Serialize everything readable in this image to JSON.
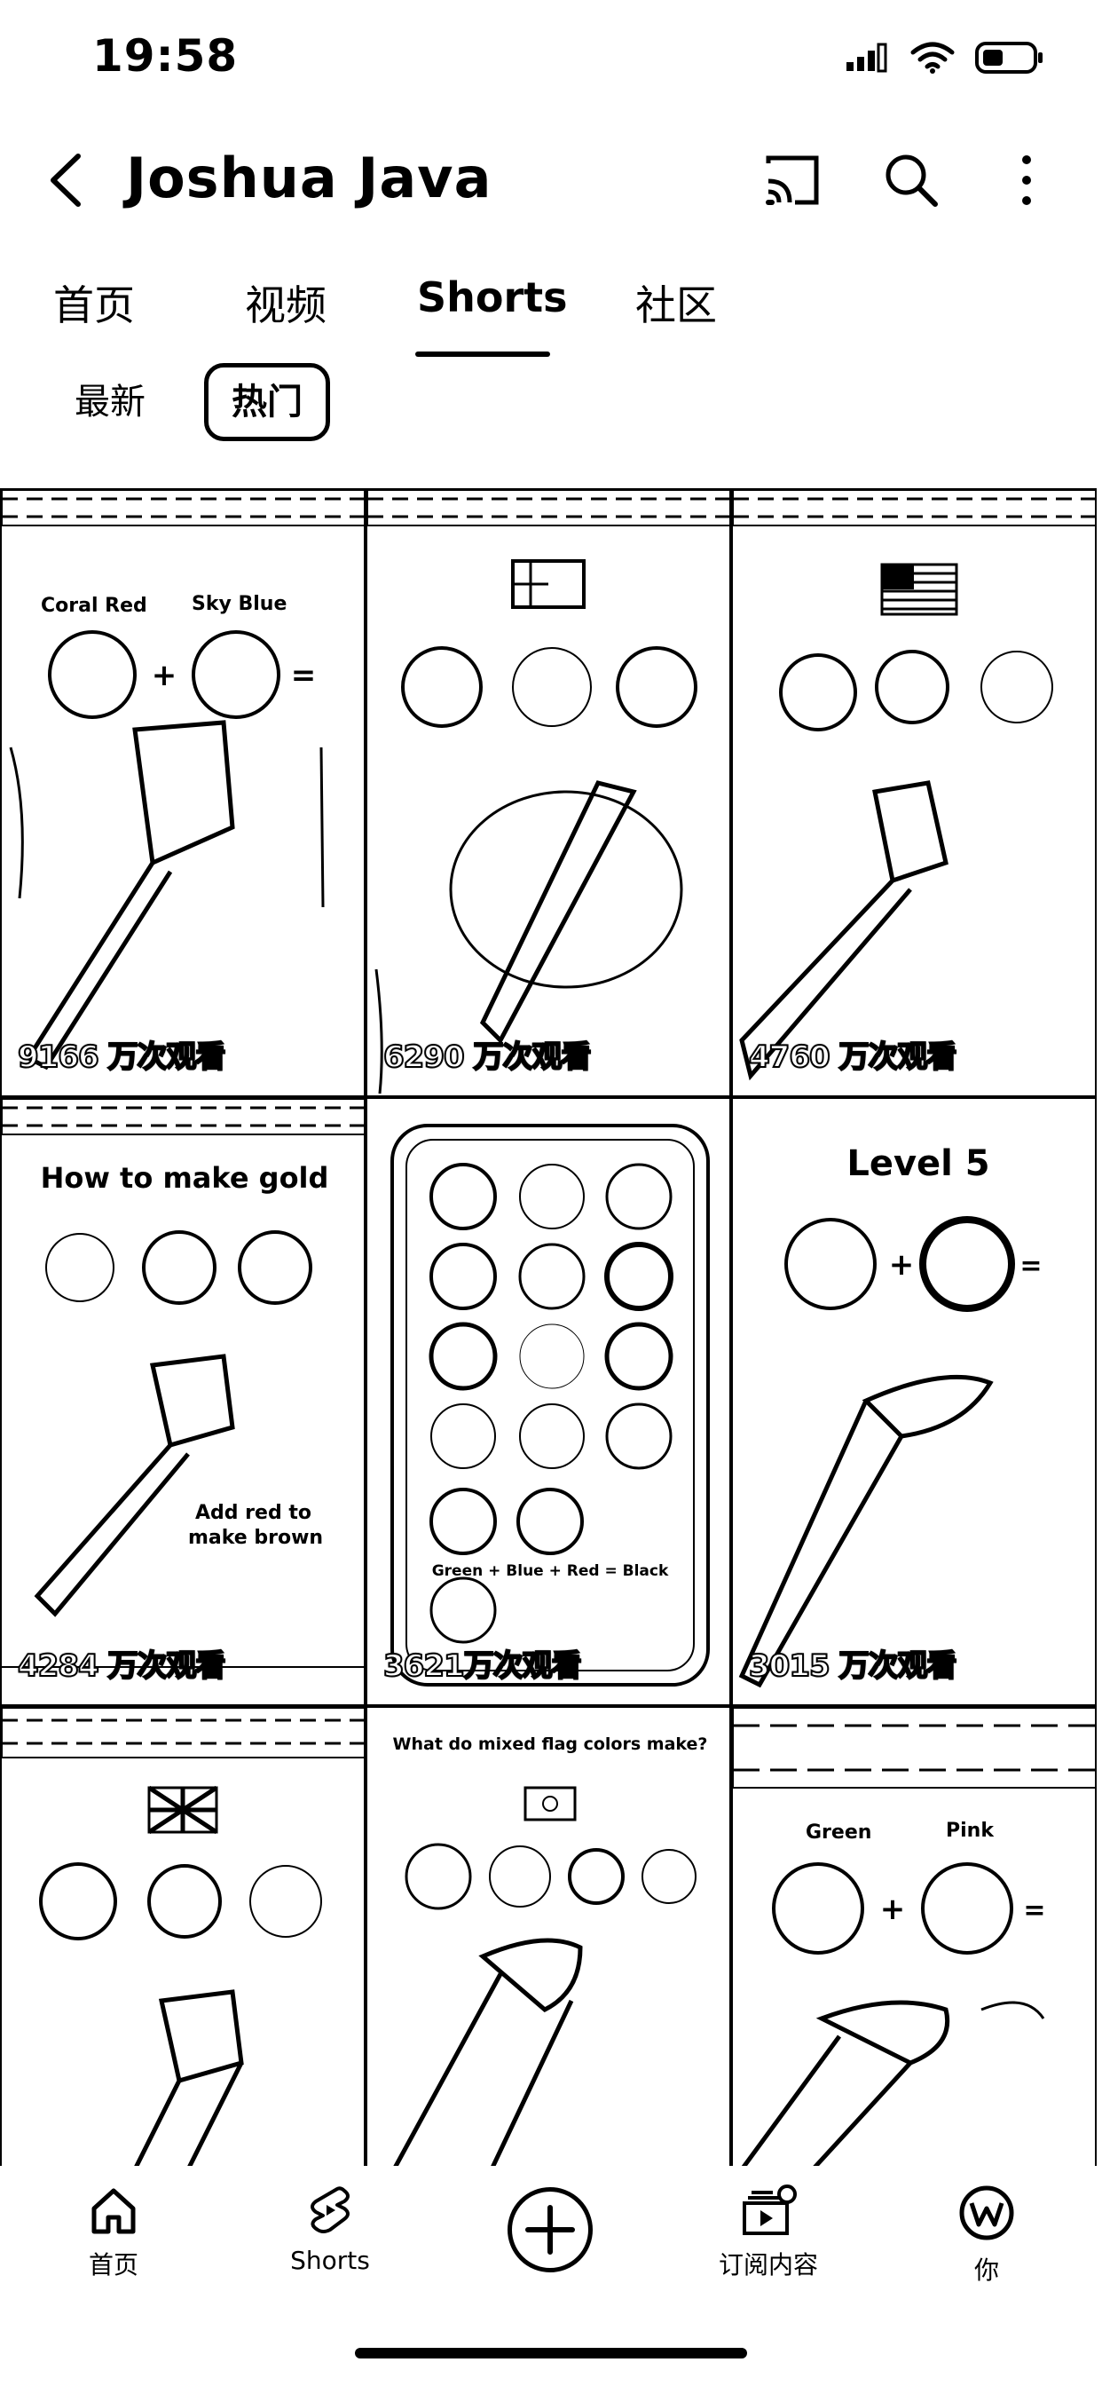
{
  "status_bar": {
    "time": "19:58"
  },
  "header": {
    "channel_name": "Joshua Java"
  },
  "tabs": [
    {
      "label": "首页",
      "active": false
    },
    {
      "label": "视频",
      "active": false
    },
    {
      "label": "Shorts",
      "active": true
    },
    {
      "label": "社区",
      "active": false
    }
  ],
  "chips": [
    {
      "label": "最新",
      "active": false
    },
    {
      "label": "热门",
      "active": true
    }
  ],
  "shorts": [
    {
      "views": "9166 万次观看",
      "labels": [
        "Coral Red",
        "Sky Blue"
      ]
    },
    {
      "views": "6290 万次观看",
      "labels": []
    },
    {
      "views": "4760 万次观看",
      "labels": []
    },
    {
      "views": "4284 万次观看",
      "labels": [
        "How to make gold",
        "Add red to",
        "make brown"
      ]
    },
    {
      "views": "3621万次观看",
      "labels": [
        "Green + Blue + Red = Black"
      ]
    },
    {
      "views": "3015 万次观看",
      "labels": [
        "Level 5"
      ]
    },
    {
      "views": "",
      "labels": []
    },
    {
      "views": "",
      "labels": [
        "What do mixed flag colors make?"
      ]
    },
    {
      "views": "",
      "labels": [
        "Green",
        "Pink"
      ]
    }
  ],
  "bottom_nav": [
    {
      "label": "首页",
      "icon": "home-icon"
    },
    {
      "label": "Shorts",
      "icon": "shorts-icon"
    },
    {
      "label": "",
      "icon": "create-icon"
    },
    {
      "label": "订阅内容",
      "icon": "subscriptions-icon"
    },
    {
      "label": "你",
      "icon": "avatar"
    }
  ],
  "colors": {
    "background": "#ffffff",
    "foreground": "#000000"
  }
}
